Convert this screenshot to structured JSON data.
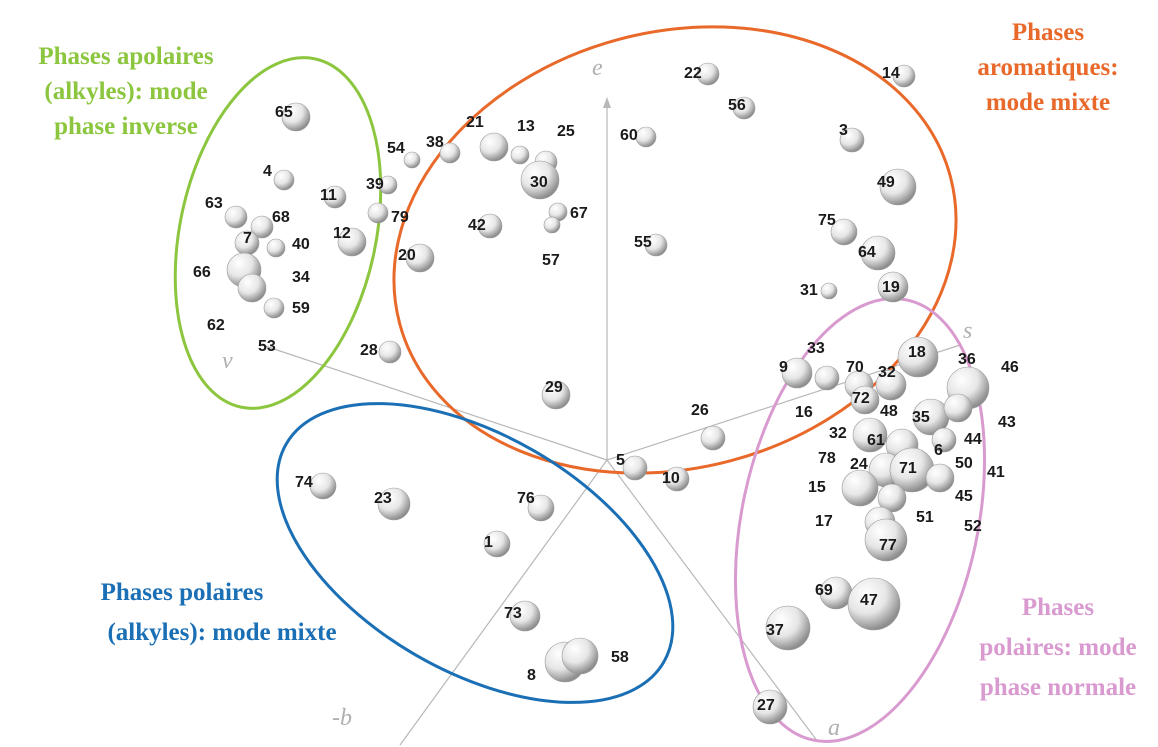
{
  "axes": {
    "e": "e",
    "s": "s",
    "v": "v",
    "a": "a",
    "neg_b": "-b"
  },
  "groups": [
    {
      "id": "apolar",
      "color": "#8cc63f",
      "lines": [
        "Phases apolaires",
        "(alkyles): mode",
        "phase inverse"
      ]
    },
    {
      "id": "aromatic",
      "color": "#e8692a",
      "lines": [
        "Phases",
        "aromatiques:",
        "mode mixte"
      ]
    },
    {
      "id": "polar_mixed",
      "color": "#1b6fb5",
      "lines": [
        "Phases polaires",
        "(alkyles): mode mixte"
      ]
    },
    {
      "id": "polar_normal",
      "color": "#d99ad0",
      "lines": [
        "Phases",
        "polaires: mode",
        "phase normale"
      ]
    }
  ],
  "points": [
    {
      "label": "65"
    },
    {
      "label": "4"
    },
    {
      "label": "11"
    },
    {
      "label": "39"
    },
    {
      "label": "79"
    },
    {
      "label": "63"
    },
    {
      "label": "68"
    },
    {
      "label": "7"
    },
    {
      "label": "40"
    },
    {
      "label": "12"
    },
    {
      "label": "66"
    },
    {
      "label": "34"
    },
    {
      "label": "59"
    },
    {
      "label": "62"
    },
    {
      "label": "53"
    },
    {
      "label": "54"
    },
    {
      "label": "38"
    },
    {
      "label": "21"
    },
    {
      "label": "13"
    },
    {
      "label": "25"
    },
    {
      "label": "30"
    },
    {
      "label": "60"
    },
    {
      "label": "22"
    },
    {
      "label": "56"
    },
    {
      "label": "14"
    },
    {
      "label": "3"
    },
    {
      "label": "49"
    },
    {
      "label": "67"
    },
    {
      "label": "42"
    },
    {
      "label": "57"
    },
    {
      "label": "55"
    },
    {
      "label": "20"
    },
    {
      "label": "75"
    },
    {
      "label": "64"
    },
    {
      "label": "31"
    },
    {
      "label": "19"
    },
    {
      "label": "28"
    },
    {
      "label": "29"
    },
    {
      "label": "26"
    },
    {
      "label": "5"
    },
    {
      "label": "10"
    },
    {
      "label": "9"
    },
    {
      "label": "33"
    },
    {
      "label": "70"
    },
    {
      "label": "18"
    },
    {
      "label": "36"
    },
    {
      "label": "46"
    },
    {
      "label": "32"
    },
    {
      "label": "72"
    },
    {
      "label": "48"
    },
    {
      "label": "35"
    },
    {
      "label": "16"
    },
    {
      "label": "43"
    },
    {
      "label": "32"
    },
    {
      "label": "61"
    },
    {
      "label": "44"
    },
    {
      "label": "6"
    },
    {
      "label": "78"
    },
    {
      "label": "24"
    },
    {
      "label": "71"
    },
    {
      "label": "50"
    },
    {
      "label": "41"
    },
    {
      "label": "15"
    },
    {
      "label": "45"
    },
    {
      "label": "17"
    },
    {
      "label": "51"
    },
    {
      "label": "52"
    },
    {
      "label": "77"
    },
    {
      "label": "69"
    },
    {
      "label": "47"
    },
    {
      "label": "37"
    },
    {
      "label": "27"
    },
    {
      "label": "74"
    },
    {
      "label": "23"
    },
    {
      "label": "76"
    },
    {
      "label": "1"
    },
    {
      "label": "73"
    },
    {
      "label": "8"
    },
    {
      "label": "58"
    }
  ]
}
